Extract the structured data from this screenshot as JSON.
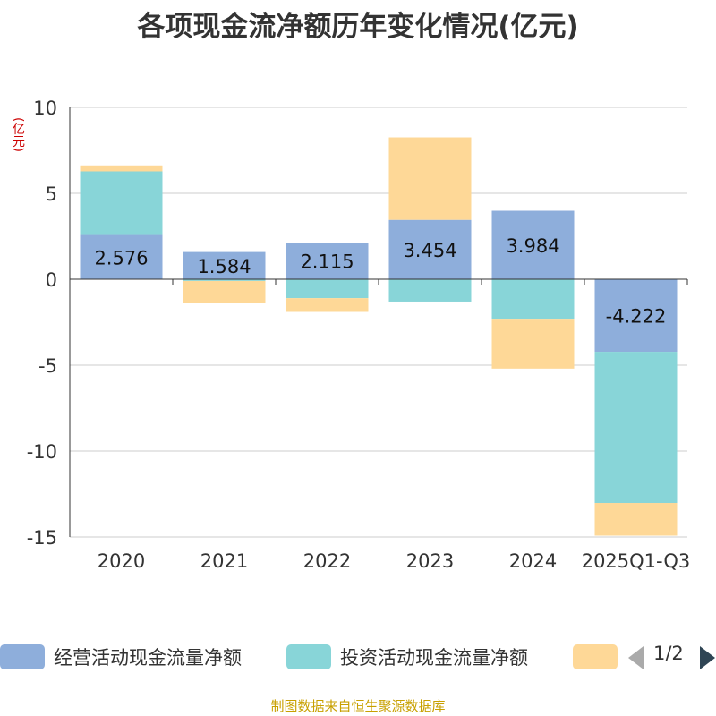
{
  "chart_data": {
    "type": "bar",
    "stacked": true,
    "title": "各项现金流净额历年变化情况(亿元)",
    "ylabel": "(亿元)",
    "ylim": [
      -15,
      10
    ],
    "yticks": [
      10,
      5,
      0,
      -5,
      -10,
      -15
    ],
    "ytick_labels": [
      "10",
      "5",
      "0",
      "-5",
      "-10",
      "-15"
    ],
    "categories": [
      "2020",
      "2021",
      "2022",
      "2023",
      "2024",
      "2025Q1-Q3"
    ],
    "series": [
      {
        "name": "经营活动现金流量净额",
        "color": "#8eaedb",
        "values": [
          2.576,
          1.584,
          2.115,
          3.454,
          3.984,
          -4.222
        ],
        "labels": [
          "2.576",
          "1.584",
          "2.115",
          "3.454",
          "3.984",
          "-4.222"
        ]
      },
      {
        "name": "投资活动现金流量净额",
        "color": "#88d5d8",
        "values": [
          3.7,
          -0.1,
          -1.1,
          -1.3,
          -2.3,
          -8.8
        ]
      },
      {
        "name": "",
        "color": "#fed897",
        "values": [
          0.35,
          -1.3,
          -0.8,
          4.8,
          -2.9,
          -1.9
        ]
      }
    ],
    "legend_position": "bottom",
    "grid": true
  },
  "legend": {
    "page_text": "1/2"
  },
  "source_note": "制图数据来自恒生聚源数据库"
}
